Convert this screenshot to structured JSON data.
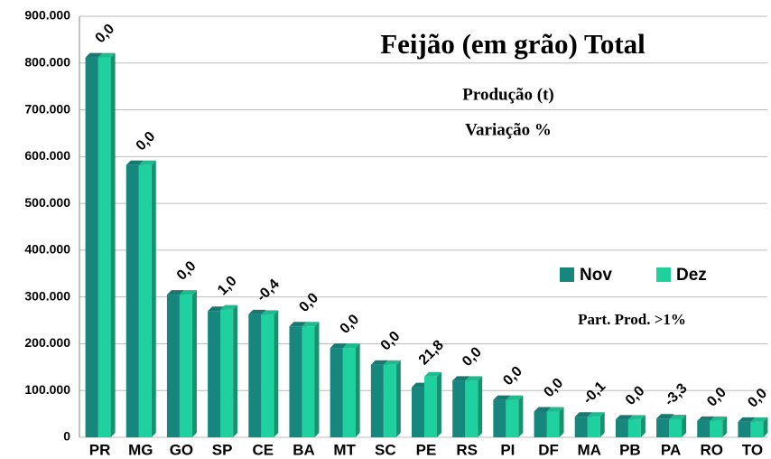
{
  "chart_data": {
    "type": "bar3d",
    "title": "Feijão (em grão) Total",
    "subtitle_lines": [
      "Produção (t)",
      "Variação %"
    ],
    "note": "Part. Prod. >1%",
    "categories": [
      "PR",
      "MG",
      "GO",
      "SP",
      "CE",
      "BA",
      "MT",
      "SC",
      "PE",
      "RS",
      "PI",
      "DF",
      "MA",
      "PB",
      "PA",
      "RO",
      "TO"
    ],
    "series": [
      {
        "name": "Nov",
        "color": "#17877d",
        "values": [
          812000,
          582000,
          305000,
          270000,
          263000,
          237000,
          191000,
          155000,
          107000,
          121000,
          80000,
          55000,
          44000,
          38000,
          40000,
          35000,
          33000
        ]
      },
      {
        "name": "Dez",
        "color": "#1fd19f",
        "values": [
          812000,
          582000,
          305000,
          273000,
          262000,
          237000,
          191000,
          155000,
          130000,
          121000,
          80000,
          55000,
          44000,
          38000,
          38700,
          35000,
          33000
        ]
      }
    ],
    "annotations": [
      "0,0",
      "0,0",
      "0,0",
      "1,0",
      "-0,4",
      "0,0",
      "0,0",
      "0,0",
      "21,8",
      "0,0",
      "0,0",
      "0,0",
      "-0,1",
      "0,0",
      "-3,3",
      "0,0",
      "0,0"
    ],
    "ylim": [
      0,
      900000
    ],
    "yticks": [
      0,
      {
        "value": 100000,
        "label": "100.000"
      },
      {
        "value": 200000,
        "label": "200.000"
      },
      {
        "value": 300000,
        "label": "300.000"
      },
      {
        "value": 400000,
        "label": "400.000"
      },
      {
        "value": 500000,
        "label": "500.000"
      },
      {
        "value": 600000,
        "label": "600.000"
      },
      {
        "value": 700000,
        "label": "700.000"
      },
      {
        "value": 800000,
        "label": "800.000"
      },
      {
        "value": 900000,
        "label": "900.000"
      }
    ],
    "grid": true,
    "legend": "right"
  }
}
